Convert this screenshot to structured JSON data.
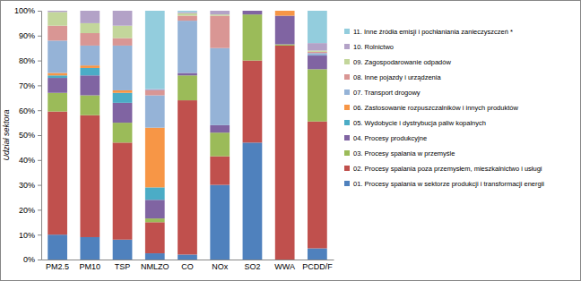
{
  "chart_data": {
    "type": "bar",
    "stacked": true,
    "legend": "right",
    "grid": false,
    "y_label": "Udział sektora",
    "categories": [
      "PM2.5",
      "PM10",
      "TSP",
      "NMLZO",
      "CO",
      "NOx",
      "SO2",
      "WWA",
      "PCDD/F"
    ],
    "ylim": [
      0,
      100
    ],
    "yticks": [
      {
        "value": 0,
        "label": "0%"
      },
      {
        "value": 10,
        "label": "10%"
      },
      {
        "value": 20,
        "label": "20%"
      },
      {
        "value": 30,
        "label": "30%"
      },
      {
        "value": 40,
        "label": "40%"
      },
      {
        "value": 50,
        "label": "50%"
      },
      {
        "value": 60,
        "label": "60%"
      },
      {
        "value": 70,
        "label": "70%"
      },
      {
        "value": 80,
        "label": "80%"
      },
      {
        "value": 90,
        "label": "90%"
      },
      {
        "value": 100,
        "label": "100%"
      }
    ],
    "series": [
      {
        "name": "01. Procesy spalania w sektorze produkcji i transformacji energii",
        "color": "#4f81bd",
        "values": [
          10,
          9,
          8,
          2.5,
          2,
          30,
          47,
          0,
          4.5
        ]
      },
      {
        "name": "02. Procesy spalania poza przemysłem, mieszkalnictwo i usługi",
        "color": "#c0504d",
        "values": [
          49.5,
          49,
          39,
          12.5,
          62,
          11.5,
          33,
          86,
          51
        ]
      },
      {
        "name": "03. Procesy spalania w przemyśle",
        "color": "#9bbb59",
        "values": [
          7.5,
          8,
          8,
          1.5,
          10,
          9.5,
          18.5,
          0.5,
          21
        ]
      },
      {
        "name": "04. Procesy produkcyjne",
        "color": "#8064a2",
        "values": [
          6,
          8,
          8,
          7.5,
          1,
          3,
          1.5,
          11.5,
          5.5
        ]
      },
      {
        "name": "05. Wydobycie i dystrybucja paliw kopalnych",
        "color": "#4bacc6",
        "values": [
          1,
          3,
          4,
          5,
          0,
          0,
          0,
          0,
          0
        ]
      },
      {
        "name": "06. Zastosowanie rozpuszczalników i innych produktów",
        "color": "#f79646",
        "values": [
          1,
          1,
          1,
          24,
          0,
          0,
          0,
          2,
          0
        ]
      },
      {
        "name": "07. Transport drogowy",
        "color": "#95b3d7",
        "values": [
          13,
          8,
          18,
          13,
          21,
          31,
          0,
          0,
          1
        ]
      },
      {
        "name": "08. Inne pojazdy i urządzenia",
        "color": "#d99694",
        "values": [
          6,
          5,
          3,
          2,
          2,
          13,
          0,
          0,
          0.5
        ]
      },
      {
        "name": "09. Zagospodarowanie odpadów",
        "color": "#c3d69b",
        "values": [
          5.5,
          4,
          5,
          0,
          1,
          0.5,
          0,
          0,
          0.5
        ]
      },
      {
        "name": "10. Rolnictwo",
        "color": "#b3a2c7",
        "values": [
          0.5,
          5,
          6,
          0.5,
          0.5,
          1.5,
          0,
          0,
          3
        ]
      },
      {
        "name": "11. Inne źródła emisji i pochłaniania zanieczyszczeń *",
        "color": "#93cddd",
        "values": [
          0,
          0,
          0,
          31.5,
          0.5,
          0,
          0,
          0,
          13
        ]
      }
    ]
  }
}
